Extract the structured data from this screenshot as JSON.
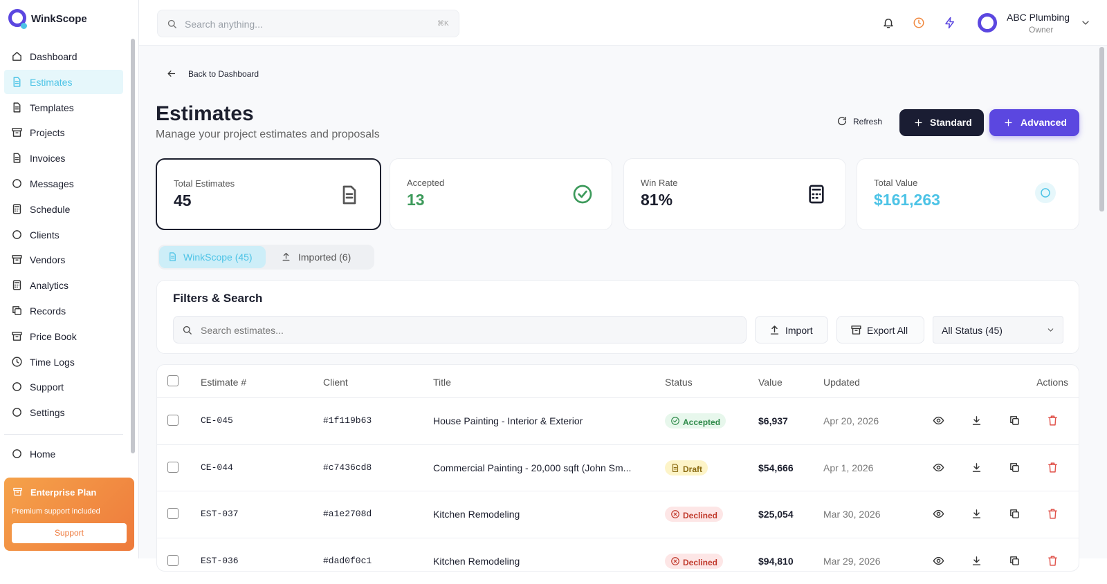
{
  "sidebar": {
    "brand": "WinkScope",
    "nav": [
      "Dashboard",
      "Estimates",
      "Templates",
      "Projects",
      "Invoices",
      "Messages",
      "Schedule",
      "Clients",
      "Vendors",
      "Analytics",
      "Records",
      "Price Book",
      "Time Logs",
      "Support",
      "Settings"
    ],
    "home": "Home",
    "plan": {
      "title": "Enterprise Plan",
      "subtitle": "Premium support included",
      "button": "Support"
    }
  },
  "topbar": {
    "search": "Search anything...",
    "shortcut": "⌘K",
    "user": {
      "name": "ABC Plumbing",
      "role": "Owner"
    }
  },
  "header": {
    "back": "Back to Dashboard",
    "title": "Estimates",
    "subtitle": "Manage your project estimates and proposals",
    "refresh": "Refresh",
    "standard": "Standard",
    "advanced": "Advanced"
  },
  "stats": [
    {
      "label": "Total Estimates",
      "value": "45"
    },
    {
      "label": "Accepted",
      "value": "13"
    },
    {
      "label": "Win Rate",
      "value": "81%"
    },
    {
      "label": "Total Value",
      "value": "$161,263"
    }
  ],
  "tabs": [
    "WinkScope (45)",
    "Imported (6)"
  ],
  "filters": {
    "title": "Filters & Search",
    "search": "Search estimates...",
    "import": "Import",
    "export": "Export All",
    "status": "All Status (45)"
  },
  "table": {
    "headers": [
      "Estimate #",
      "Client",
      "Title",
      "Status",
      "Value",
      "Updated",
      "Actions"
    ],
    "rows": [
      [
        "CE-045",
        "#1f119b63",
        "House Painting - Interior & Exterior",
        "Accepted",
        "$6,937",
        "Apr 20, 2026"
      ],
      [
        "CE-044",
        "#c7436cd8",
        "Commercial Painting - 20,000 sqft (John Sm...",
        "Draft",
        "$54,666",
        "Apr 1, 2026"
      ],
      [
        "EST-037",
        "#a1e2708d",
        "Kitchen Remodeling",
        "Declined",
        "$25,054",
        "Mar 30, 2026"
      ],
      [
        "EST-036",
        "#dad0f0c1",
        "Kitchen Remodeling",
        "Declined",
        "$94,810",
        "Mar 29, 2026"
      ]
    ]
  }
}
